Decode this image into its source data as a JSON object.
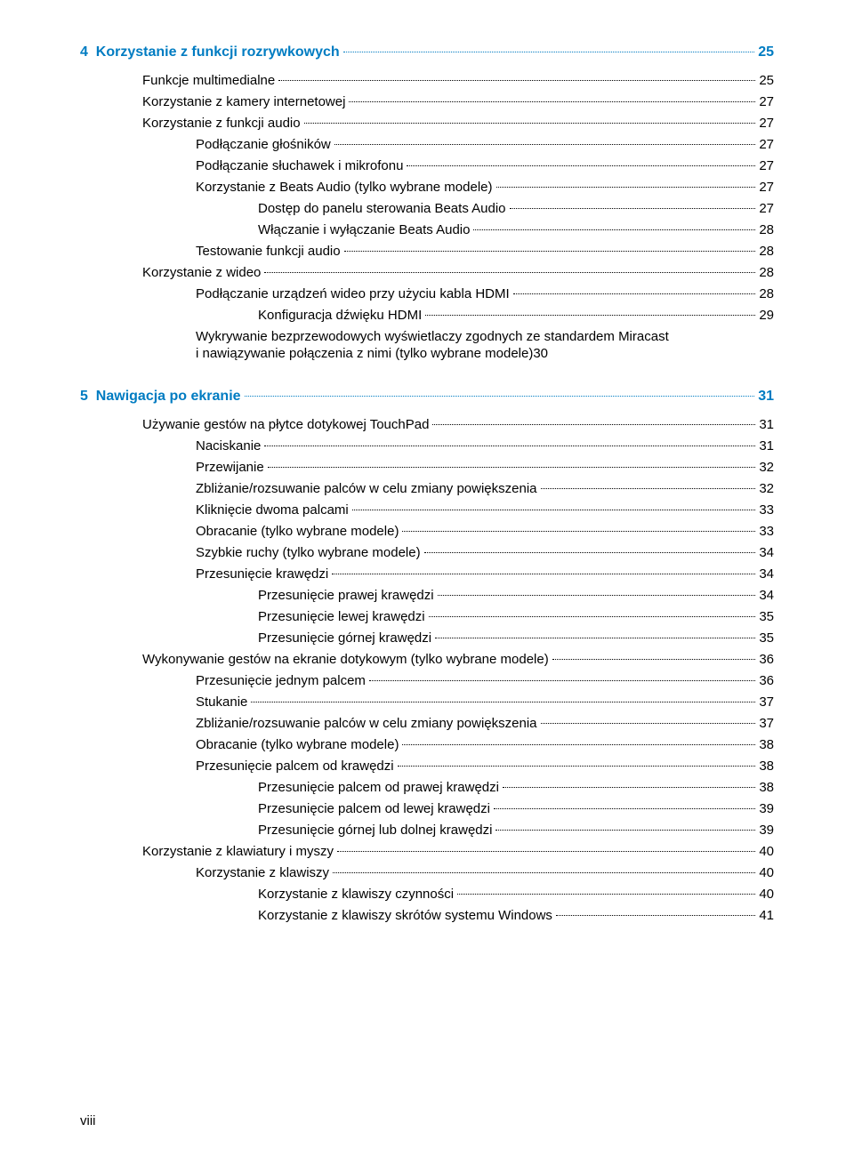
{
  "page_footer": "viii",
  "chapters": [
    {
      "number": "4",
      "title": "Korzystanie z funkcji rozrywkowych",
      "page": "25",
      "entries": [
        {
          "level": 1,
          "text": "Funkcje multimedialne",
          "page": "25"
        },
        {
          "level": 1,
          "text": "Korzystanie z kamery internetowej",
          "page": "27"
        },
        {
          "level": 1,
          "text": "Korzystanie z funkcji audio",
          "page": "27"
        },
        {
          "level": 2,
          "text": "Podłączanie głośników",
          "page": "27"
        },
        {
          "level": 2,
          "text": "Podłączanie słuchawek i mikrofonu",
          "page": "27"
        },
        {
          "level": 2,
          "text": "Korzystanie z Beats Audio (tylko wybrane modele)",
          "page": "27"
        },
        {
          "level": 3,
          "text": "Dostęp do panelu sterowania Beats Audio",
          "page": "27"
        },
        {
          "level": 3,
          "text": "Włączanie i wyłączanie Beats Audio",
          "page": "28"
        },
        {
          "level": 2,
          "text": "Testowanie funkcji audio",
          "page": "28"
        },
        {
          "level": 1,
          "text": "Korzystanie z wideo",
          "page": "28"
        },
        {
          "level": 2,
          "text": "Podłączanie urządzeń wideo przy użyciu kabla HDMI",
          "page": "28"
        },
        {
          "level": 3,
          "text": "Konfiguracja dźwięku HDMI",
          "page": "29"
        },
        {
          "level": 2,
          "multiline": true,
          "line1": "Wykrywanie bezprzewodowych wyświetlaczy zgodnych ze standardem Miracast",
          "line2": "i nawiązywanie połączenia z nimi (tylko wybrane modele)",
          "page": "30"
        }
      ]
    },
    {
      "number": "5",
      "title": "Nawigacja po ekranie",
      "page": "31",
      "entries": [
        {
          "level": 1,
          "text": "Używanie gestów na płytce dotykowej TouchPad",
          "page": "31"
        },
        {
          "level": 2,
          "text": "Naciskanie",
          "page": "31"
        },
        {
          "level": 2,
          "text": "Przewijanie",
          "page": "32"
        },
        {
          "level": 2,
          "text": "Zbliżanie/rozsuwanie palców w celu zmiany powiększenia",
          "page": "32"
        },
        {
          "level": 2,
          "text": "Kliknięcie dwoma palcami",
          "page": "33"
        },
        {
          "level": 2,
          "text": "Obracanie (tylko wybrane modele)",
          "page": "33"
        },
        {
          "level": 2,
          "text": "Szybkie ruchy (tylko wybrane modele)",
          "page": "34"
        },
        {
          "level": 2,
          "text": "Przesunięcie krawędzi",
          "page": "34"
        },
        {
          "level": 3,
          "text": "Przesunięcie prawej krawędzi",
          "page": "34"
        },
        {
          "level": 3,
          "text": "Przesunięcie lewej krawędzi",
          "page": "35"
        },
        {
          "level": 3,
          "text": "Przesunięcie górnej krawędzi",
          "page": "35"
        },
        {
          "level": 1,
          "text": "Wykonywanie gestów na ekranie dotykowym (tylko wybrane modele)",
          "page": "36"
        },
        {
          "level": 2,
          "text": "Przesunięcie jednym palcem",
          "page": "36"
        },
        {
          "level": 2,
          "text": "Stukanie",
          "page": "37"
        },
        {
          "level": 2,
          "text": "Zbliżanie/rozsuwanie palców w celu zmiany powiększenia",
          "page": "37"
        },
        {
          "level": 2,
          "text": "Obracanie (tylko wybrane modele)",
          "page": "38"
        },
        {
          "level": 2,
          "text": "Przesunięcie palcem od krawędzi",
          "page": "38"
        },
        {
          "level": 3,
          "text": "Przesunięcie palcem od prawej krawędzi",
          "page": "38"
        },
        {
          "level": 3,
          "text": "Przesunięcie palcem od lewej krawędzi",
          "page": "39"
        },
        {
          "level": 3,
          "text": "Przesunięcie górnej lub dolnej krawędzi",
          "page": "39"
        },
        {
          "level": 1,
          "text": "Korzystanie z klawiatury i myszy",
          "page": "40"
        },
        {
          "level": 2,
          "text": "Korzystanie z klawiszy",
          "page": "40"
        },
        {
          "level": 3,
          "text": "Korzystanie z klawiszy czynności",
          "page": "40"
        },
        {
          "level": 3,
          "text": "Korzystanie z klawiszy skrótów systemu Windows",
          "page": "41"
        }
      ]
    }
  ]
}
